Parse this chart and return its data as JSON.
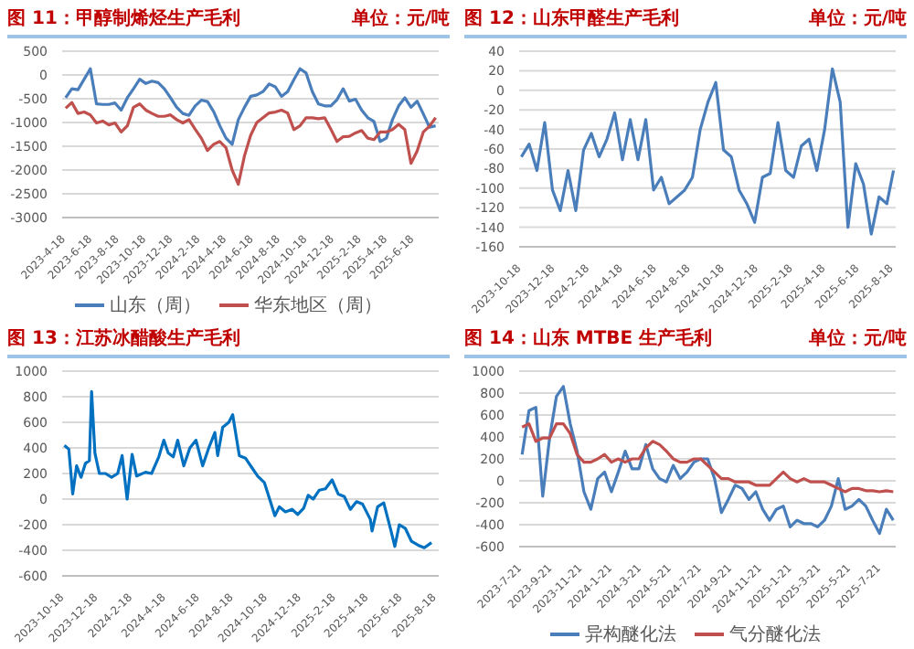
{
  "chart_data": [
    {
      "type": "line",
      "title": "图 11：甲醇制烯烃生产毛利",
      "subtitle": "单位：元/吨",
      "grid": "y",
      "legend": "bottom",
      "x": [
        "2023-04-18",
        "2023-05-02",
        "2023-05-16",
        "2023-05-30",
        "2023-06-13",
        "2023-06-27",
        "2023-07-11",
        "2023-07-25",
        "2023-08-08",
        "2023-08-22",
        "2023-09-05",
        "2023-09-19",
        "2023-10-03",
        "2023-10-17",
        "2023-10-31",
        "2023-11-14",
        "2023-11-28",
        "2023-12-12",
        "2023-12-26",
        "2024-01-09",
        "2024-01-23",
        "2024-02-06",
        "2024-02-20",
        "2024-03-05",
        "2024-03-19",
        "2024-04-02",
        "2024-04-16",
        "2024-04-30",
        "2024-05-14",
        "2024-05-28",
        "2024-06-11",
        "2024-06-25",
        "2024-07-09",
        "2024-07-23",
        "2024-08-06",
        "2024-08-20",
        "2024-09-03",
        "2024-09-17",
        "2024-10-01",
        "2024-10-15",
        "2024-10-29",
        "2024-11-12",
        "2024-11-26",
        "2024-12-10",
        "2024-12-24",
        "2025-01-07",
        "2025-01-21",
        "2025-02-04",
        "2025-02-18",
        "2025-03-04",
        "2025-03-18",
        "2025-04-01",
        "2025-04-15",
        "2025-04-29",
        "2025-05-13",
        "2025-05-27",
        "2025-06-10",
        "2025-06-24",
        "2025-07-08",
        "2025-07-22",
        "2025-08-05"
      ],
      "series": [
        {
          "name": "山东（周）",
          "color": "#4a7ebb",
          "values": [
            -480,
            -290,
            -310,
            -90,
            130,
            -610,
            -620,
            -620,
            -590,
            -740,
            -480,
            -290,
            -90,
            -180,
            -130,
            -160,
            -290,
            -480,
            -680,
            -810,
            -850,
            -650,
            -530,
            -560,
            -770,
            -1070,
            -1330,
            -1460,
            -940,
            -680,
            -450,
            -420,
            -350,
            -190,
            -250,
            -450,
            -350,
            -100,
            130,
            40,
            -350,
            -610,
            -650,
            -650,
            -520,
            -290,
            -550,
            -510,
            -740,
            -900,
            -980,
            -1400,
            -1330,
            -940,
            -650,
            -480,
            -680,
            -550,
            -820,
            -1100,
            -1070
          ]
        },
        {
          "name": "华东地区（周）",
          "color": "#c0504d",
          "values": [
            -700,
            -580,
            -810,
            -780,
            -840,
            -1010,
            -970,
            -1050,
            -1010,
            -1200,
            -1070,
            -680,
            -610,
            -740,
            -810,
            -870,
            -870,
            -840,
            -940,
            -1010,
            -940,
            -1140,
            -1330,
            -1590,
            -1460,
            -1400,
            -1530,
            -2000,
            -2300,
            -1700,
            -1270,
            -1000,
            -900,
            -800,
            -780,
            -740,
            -800,
            -1150,
            -1070,
            -900,
            -900,
            -920,
            -900,
            -1140,
            -1400,
            -1300,
            -1290,
            -1220,
            -1170,
            -1330,
            -1360,
            -1200,
            -1200,
            -1150,
            -1040,
            -1150,
            -1860,
            -1600,
            -1200,
            -1080,
            -900
          ]
        }
      ],
      "xlim": [
        "2023-04-10",
        "2025-08-12"
      ],
      "xticks": [
        {
          "value": "2023-04-18",
          "label": "2023-4-18"
        },
        {
          "value": "2023-06-18",
          "label": "2023-6-18"
        },
        {
          "value": "2023-08-18",
          "label": "2023-8-18"
        },
        {
          "value": "2023-10-18",
          "label": "2023-10-18"
        },
        {
          "value": "2023-12-18",
          "label": "2023-12-18"
        },
        {
          "value": "2024-02-18",
          "label": "2024-2-18"
        },
        {
          "value": "2024-04-18",
          "label": "2024-4-18"
        },
        {
          "value": "2024-06-18",
          "label": "2024-6-18"
        },
        {
          "value": "2024-08-18",
          "label": "2024-8-18"
        },
        {
          "value": "2024-10-18",
          "label": "2024-10-18"
        },
        {
          "value": "2024-12-18",
          "label": "2024-12-18"
        },
        {
          "value": "2025-02-18",
          "label": "2025-2-18"
        },
        {
          "value": "2025-04-18",
          "label": "2025-4-18"
        },
        {
          "value": "2025-06-18",
          "label": "2025-6-18"
        }
      ],
      "ylim": [
        -3000,
        500
      ],
      "yticks": [
        -3000,
        -2500,
        -2000,
        -1500,
        -1000,
        -500,
        0,
        500
      ]
    },
    {
      "type": "line",
      "title": "图 12：山东甲醛生产毛利",
      "subtitle": "单位：元/吨",
      "grid": "y",
      "x": [
        "2023-10-18",
        "2023-11-01",
        "2023-11-15",
        "2023-11-29",
        "2023-12-13",
        "2023-12-27",
        "2024-01-10",
        "2024-01-24",
        "2024-02-07",
        "2024-02-21",
        "2024-03-06",
        "2024-03-20",
        "2024-04-03",
        "2024-04-17",
        "2024-05-01",
        "2024-05-15",
        "2024-05-29",
        "2024-06-12",
        "2024-06-26",
        "2024-07-10",
        "2024-07-24",
        "2024-08-07",
        "2024-08-21",
        "2024-09-04",
        "2024-09-18",
        "2024-10-02",
        "2024-10-16",
        "2024-10-30",
        "2024-11-13",
        "2024-11-27",
        "2024-12-11",
        "2024-12-25",
        "2025-01-08",
        "2025-01-22",
        "2025-02-05",
        "2025-02-19",
        "2025-03-05",
        "2025-03-19",
        "2025-04-02",
        "2025-04-16",
        "2025-04-30",
        "2025-05-14",
        "2025-05-28",
        "2025-06-11",
        "2025-06-25",
        "2025-07-09",
        "2025-07-23",
        "2025-08-06",
        "2025-08-18"
      ],
      "series": [
        {
          "color": "#4a7ebb",
          "values": [
            -68,
            -55,
            -82,
            -33,
            -102,
            -123,
            -82,
            -123,
            -61,
            -44,
            -68,
            -50,
            -23,
            -71,
            -30,
            -71,
            -30,
            -102,
            -89,
            -116,
            -109,
            -102,
            -89,
            -40,
            -12,
            8,
            -61,
            -68,
            -102,
            -116,
            -135,
            -89,
            -85,
            -33,
            -82,
            -89,
            -57,
            -50,
            -82,
            -40,
            22,
            -12,
            -140,
            -75,
            -96,
            -147,
            -109,
            -116,
            -82
          ]
        }
      ],
      "xlim": [
        "2023-10-14",
        "2025-08-22"
      ],
      "xticks": [
        {
          "value": "2023-10-18",
          "label": "2023-10-18"
        },
        {
          "value": "2023-12-18",
          "label": "2023-12-18"
        },
        {
          "value": "2024-02-18",
          "label": "2024-2-18"
        },
        {
          "value": "2024-04-18",
          "label": "2024-4-18"
        },
        {
          "value": "2024-06-18",
          "label": "2024-6-18"
        },
        {
          "value": "2024-08-18",
          "label": "2024-8-18"
        },
        {
          "value": "2024-10-18",
          "label": "2024-10-18"
        },
        {
          "value": "2024-12-18",
          "label": "2024-12-18"
        },
        {
          "value": "2025-02-18",
          "label": "2025-2-18"
        },
        {
          "value": "2025-04-18",
          "label": "2025-4-18"
        },
        {
          "value": "2025-06-18",
          "label": "2025-6-18"
        },
        {
          "value": "2025-08-18",
          "label": "2025-8-18"
        }
      ],
      "ylim": [
        -160,
        40
      ],
      "yticks": [
        -160,
        -140,
        -120,
        -100,
        -80,
        -60,
        -40,
        -20,
        0,
        20,
        40
      ]
    },
    {
      "type": "line",
      "title": "图 13：江苏冰醋酸生产毛利",
      "grid": "y",
      "x": [
        "2023-10-18",
        "2023-10-26",
        "2023-11-02",
        "2023-11-09",
        "2023-11-17",
        "2023-11-25",
        "2023-12-02",
        "2023-12-06",
        "2023-12-12",
        "2023-12-20",
        "2023-12-31",
        "2024-01-11",
        "2024-01-22",
        "2024-01-30",
        "2024-02-08",
        "2024-02-17",
        "2024-02-25",
        "2024-03-12",
        "2024-03-23",
        "2024-04-05",
        "2024-04-14",
        "2024-04-22",
        "2024-05-01",
        "2024-05-09",
        "2024-05-20",
        "2024-05-31",
        "2024-06-11",
        "2024-06-23",
        "2024-07-04",
        "2024-07-15",
        "2024-07-20",
        "2024-07-29",
        "2024-08-09",
        "2024-08-16",
        "2024-08-28",
        "2024-09-08",
        "2024-09-19",
        "2024-09-30",
        "2024-10-12",
        "2024-10-23",
        "2024-10-31",
        "2024-11-08",
        "2024-11-19",
        "2024-12-01",
        "2024-12-11",
        "2024-12-22",
        "2024-12-30",
        "2025-01-08",
        "2025-01-19",
        "2025-01-30",
        "2025-02-11",
        "2025-02-22",
        "2025-03-05",
        "2025-03-16",
        "2025-03-27",
        "2025-04-07",
        "2025-04-21",
        "2025-04-24",
        "2025-05-04",
        "2025-05-15",
        "2025-05-27",
        "2025-06-04",
        "2025-06-12",
        "2025-06-23",
        "2025-07-04",
        "2025-07-16",
        "2025-07-27",
        "2025-08-09"
      ],
      "series": [
        {
          "color": "#0070c0",
          "values": [
            420,
            390,
            40,
            260,
            170,
            280,
            300,
            840,
            360,
            200,
            200,
            170,
            200,
            340,
            0,
            350,
            180,
            210,
            200,
            330,
            460,
            360,
            330,
            460,
            260,
            400,
            460,
            260,
            400,
            520,
            340,
            560,
            600,
            660,
            340,
            320,
            250,
            180,
            130,
            -20,
            -130,
            -60,
            -100,
            -80,
            -120,
            -70,
            30,
            0,
            70,
            80,
            150,
            40,
            20,
            -80,
            -20,
            -40,
            -160,
            -250,
            -60,
            -30,
            -230,
            -370,
            -200,
            -230,
            -330,
            -360,
            -380,
            -340
          ]
        }
      ],
      "xlim": [
        "2023-10-14",
        "2025-08-22"
      ],
      "xticks": [
        {
          "value": "2023-10-18",
          "label": "2023-10-18"
        },
        {
          "value": "2023-12-18",
          "label": "2023-12-18"
        },
        {
          "value": "2024-02-18",
          "label": "2024-2-18"
        },
        {
          "value": "2024-04-18",
          "label": "2024-4-18"
        },
        {
          "value": "2024-06-18",
          "label": "2024-6-18"
        },
        {
          "value": "2024-08-18",
          "label": "2024-8-18"
        },
        {
          "value": "2024-10-18",
          "label": "2024-10-18"
        },
        {
          "value": "2024-12-18",
          "label": "2024-12-18"
        },
        {
          "value": "2025-02-18",
          "label": "2025-2-18"
        },
        {
          "value": "2025-04-18",
          "label": "2025-4-18"
        },
        {
          "value": "2025-06-18",
          "label": "2025-6-18"
        },
        {
          "value": "2025-08-18",
          "label": "2025-8-18"
        }
      ],
      "ylim": [
        -600,
        1000
      ],
      "yticks": [
        -600,
        -400,
        -200,
        0,
        200,
        400,
        600,
        800,
        1000
      ]
    },
    {
      "type": "line",
      "title": "图 14：山东 MTBE 生产毛利",
      "subtitle": "单位：元/吨",
      "grid": "y",
      "legend": "bottom",
      "x": [
        "2023-07-21",
        "2023-08-04",
        "2023-08-18",
        "2023-09-01",
        "2023-09-15",
        "2023-09-29",
        "2023-10-13",
        "2023-10-27",
        "2023-11-10",
        "2023-11-24",
        "2023-12-08",
        "2023-12-22",
        "2024-01-05",
        "2024-01-19",
        "2024-02-02",
        "2024-02-16",
        "2024-03-01",
        "2024-03-15",
        "2024-03-29",
        "2024-04-12",
        "2024-04-26",
        "2024-05-10",
        "2024-05-24",
        "2024-06-07",
        "2024-06-21",
        "2024-07-05",
        "2024-07-19",
        "2024-08-02",
        "2024-08-16",
        "2024-08-30",
        "2024-09-13",
        "2024-09-27",
        "2024-10-11",
        "2024-10-25",
        "2024-11-08",
        "2024-11-22",
        "2024-12-06",
        "2024-12-20",
        "2025-01-03",
        "2025-01-17",
        "2025-01-31",
        "2025-02-14",
        "2025-02-28",
        "2025-03-14",
        "2025-03-28",
        "2025-04-11",
        "2025-04-25",
        "2025-05-09",
        "2025-05-23",
        "2025-06-06",
        "2025-06-20",
        "2025-07-04",
        "2025-07-18",
        "2025-08-01",
        "2025-08-15"
      ],
      "series": [
        {
          "name": "异构醚化法",
          "color": "#4a7ebb",
          "values": [
            240,
            640,
            670,
            -140,
            390,
            770,
            860,
            520,
            270,
            -100,
            -260,
            20,
            80,
            -100,
            80,
            270,
            110,
            110,
            330,
            110,
            20,
            -10,
            140,
            20,
            80,
            170,
            200,
            200,
            20,
            -290,
            -170,
            -40,
            -70,
            -170,
            -100,
            -260,
            -360,
            -260,
            -230,
            -420,
            -360,
            -390,
            -390,
            -420,
            -360,
            -230,
            20,
            -260,
            -230,
            -170,
            -230,
            -360,
            -480,
            -260,
            -360
          ]
        },
        {
          "name": "气分醚化法",
          "color": "#c0504d",
          "values": [
            490,
            520,
            360,
            390,
            390,
            520,
            520,
            430,
            240,
            170,
            170,
            200,
            240,
            170,
            200,
            170,
            200,
            200,
            300,
            360,
            330,
            270,
            200,
            170,
            170,
            200,
            200,
            140,
            80,
            20,
            20,
            -10,
            -10,
            -10,
            -40,
            -40,
            -40,
            20,
            80,
            20,
            -10,
            20,
            -10,
            -10,
            -10,
            -40,
            -70,
            -100,
            -70,
            -70,
            -90,
            -90,
            -100,
            -90,
            -100
          ]
        }
      ],
      "xlim": [
        "2023-07-15",
        "2025-08-20"
      ],
      "xticks": [
        {
          "value": "2023-07-21",
          "label": "2023-7-21"
        },
        {
          "value": "2023-09-21",
          "label": "2023-9-21"
        },
        {
          "value": "2023-11-21",
          "label": "2023-11-21"
        },
        {
          "value": "2024-01-21",
          "label": "2024-1-21"
        },
        {
          "value": "2024-03-21",
          "label": "2024-3-21"
        },
        {
          "value": "2024-05-21",
          "label": "2024-5-21"
        },
        {
          "value": "2024-07-21",
          "label": "2024-7-21"
        },
        {
          "value": "2024-09-21",
          "label": "2024-9-21"
        },
        {
          "value": "2024-11-21",
          "label": "2024-11-21"
        },
        {
          "value": "2025-01-21",
          "label": "2025-1-21"
        },
        {
          "value": "2025-03-21",
          "label": "2025-3-21"
        },
        {
          "value": "2025-05-21",
          "label": "2025-5-21"
        },
        {
          "value": "2025-07-21",
          "label": "2025-7-21"
        }
      ],
      "ylim": [
        -600,
        1000
      ],
      "yticks": [
        -600,
        -400,
        -200,
        0,
        200,
        400,
        600,
        800,
        1000
      ]
    }
  ]
}
